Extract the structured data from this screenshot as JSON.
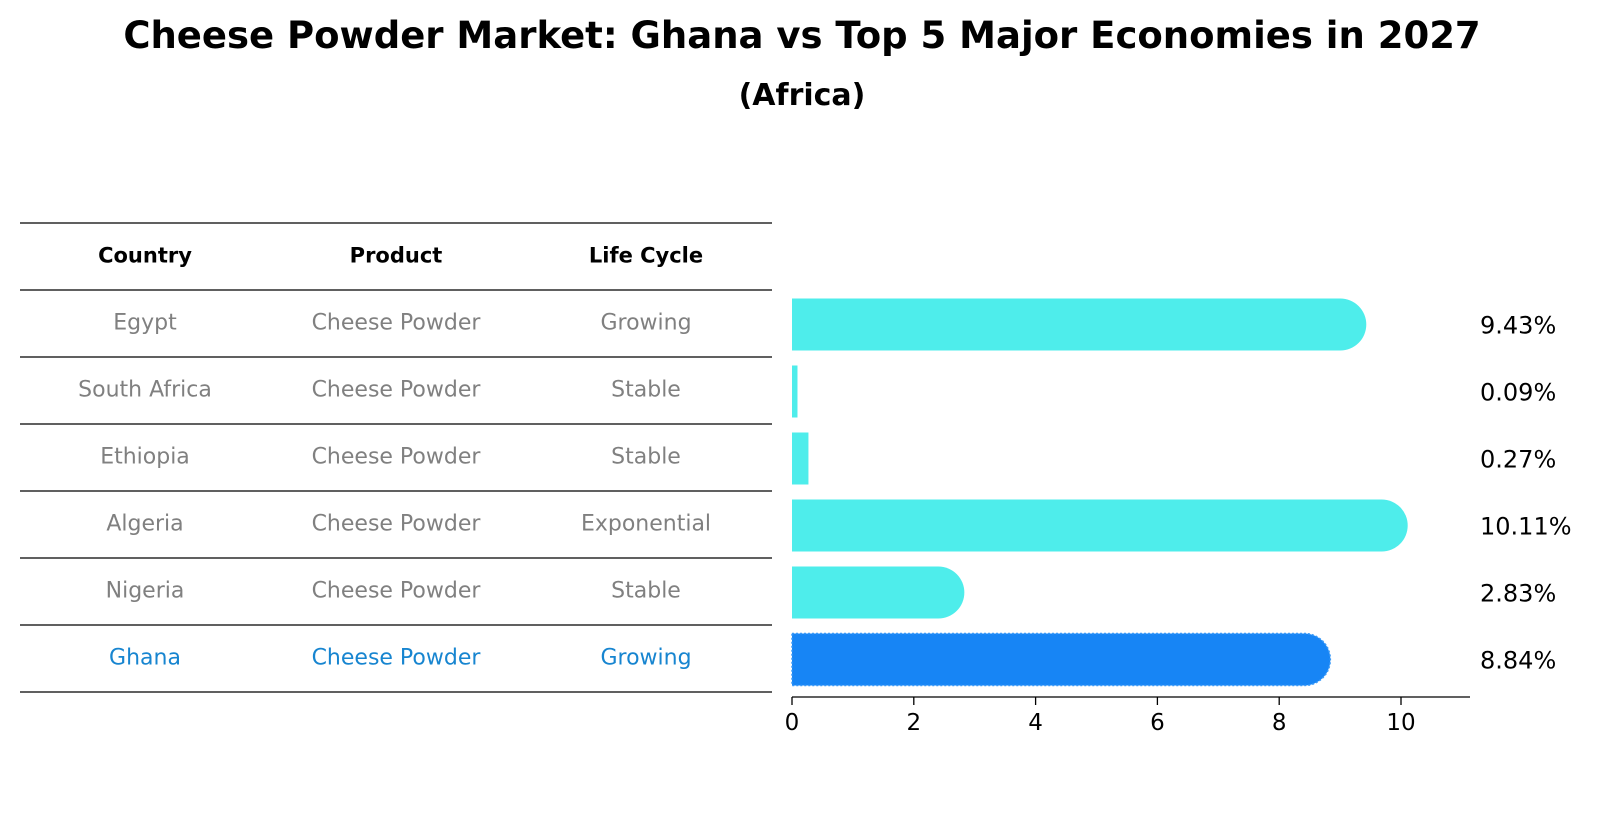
{
  "title": "Cheese Powder Market: Ghana vs Top 5 Major Economies in 2027",
  "subtitle": "(Africa)",
  "colors": {
    "bar": "#4EEDEB",
    "highlight": "#1785F5",
    "muted_text": "#808080",
    "highlight_text": "#1785D0"
  },
  "table": {
    "headers": [
      "Country",
      "Product",
      "Life Cycle"
    ],
    "rows": [
      {
        "country": "Egypt",
        "product": "Cheese Powder",
        "life_cycle": "Growing",
        "highlight": false
      },
      {
        "country": "South Africa",
        "product": "Cheese Powder",
        "life_cycle": "Stable",
        "highlight": false
      },
      {
        "country": "Ethiopia",
        "product": "Cheese Powder",
        "life_cycle": "Stable",
        "highlight": false
      },
      {
        "country": "Algeria",
        "product": "Cheese Powder",
        "life_cycle": "Exponential",
        "highlight": false
      },
      {
        "country": "Nigeria",
        "product": "Cheese Powder",
        "life_cycle": "Stable",
        "highlight": false
      },
      {
        "country": "Ghana",
        "product": "Cheese Powder",
        "life_cycle": "Growing",
        "highlight": true
      }
    ]
  },
  "chart_data": {
    "type": "bar",
    "orientation": "horizontal",
    "categories": [
      "Egypt",
      "South Africa",
      "Ethiopia",
      "Algeria",
      "Nigeria",
      "Ghana"
    ],
    "values": [
      9.43,
      0.09,
      0.27,
      10.11,
      2.83,
      8.84
    ],
    "value_labels": [
      "9.43%",
      "0.09%",
      "0.27%",
      "10.11%",
      "2.83%",
      "8.84%"
    ],
    "highlight_category": "Ghana",
    "xlim": [
      0,
      10.6
    ],
    "xticks": [
      0,
      2,
      4,
      6,
      8,
      10
    ],
    "xtick_labels": [
      "0",
      "2",
      "4",
      "6",
      "8",
      "10"
    ],
    "xlabel": "",
    "ylabel": "",
    "grid": false
  }
}
